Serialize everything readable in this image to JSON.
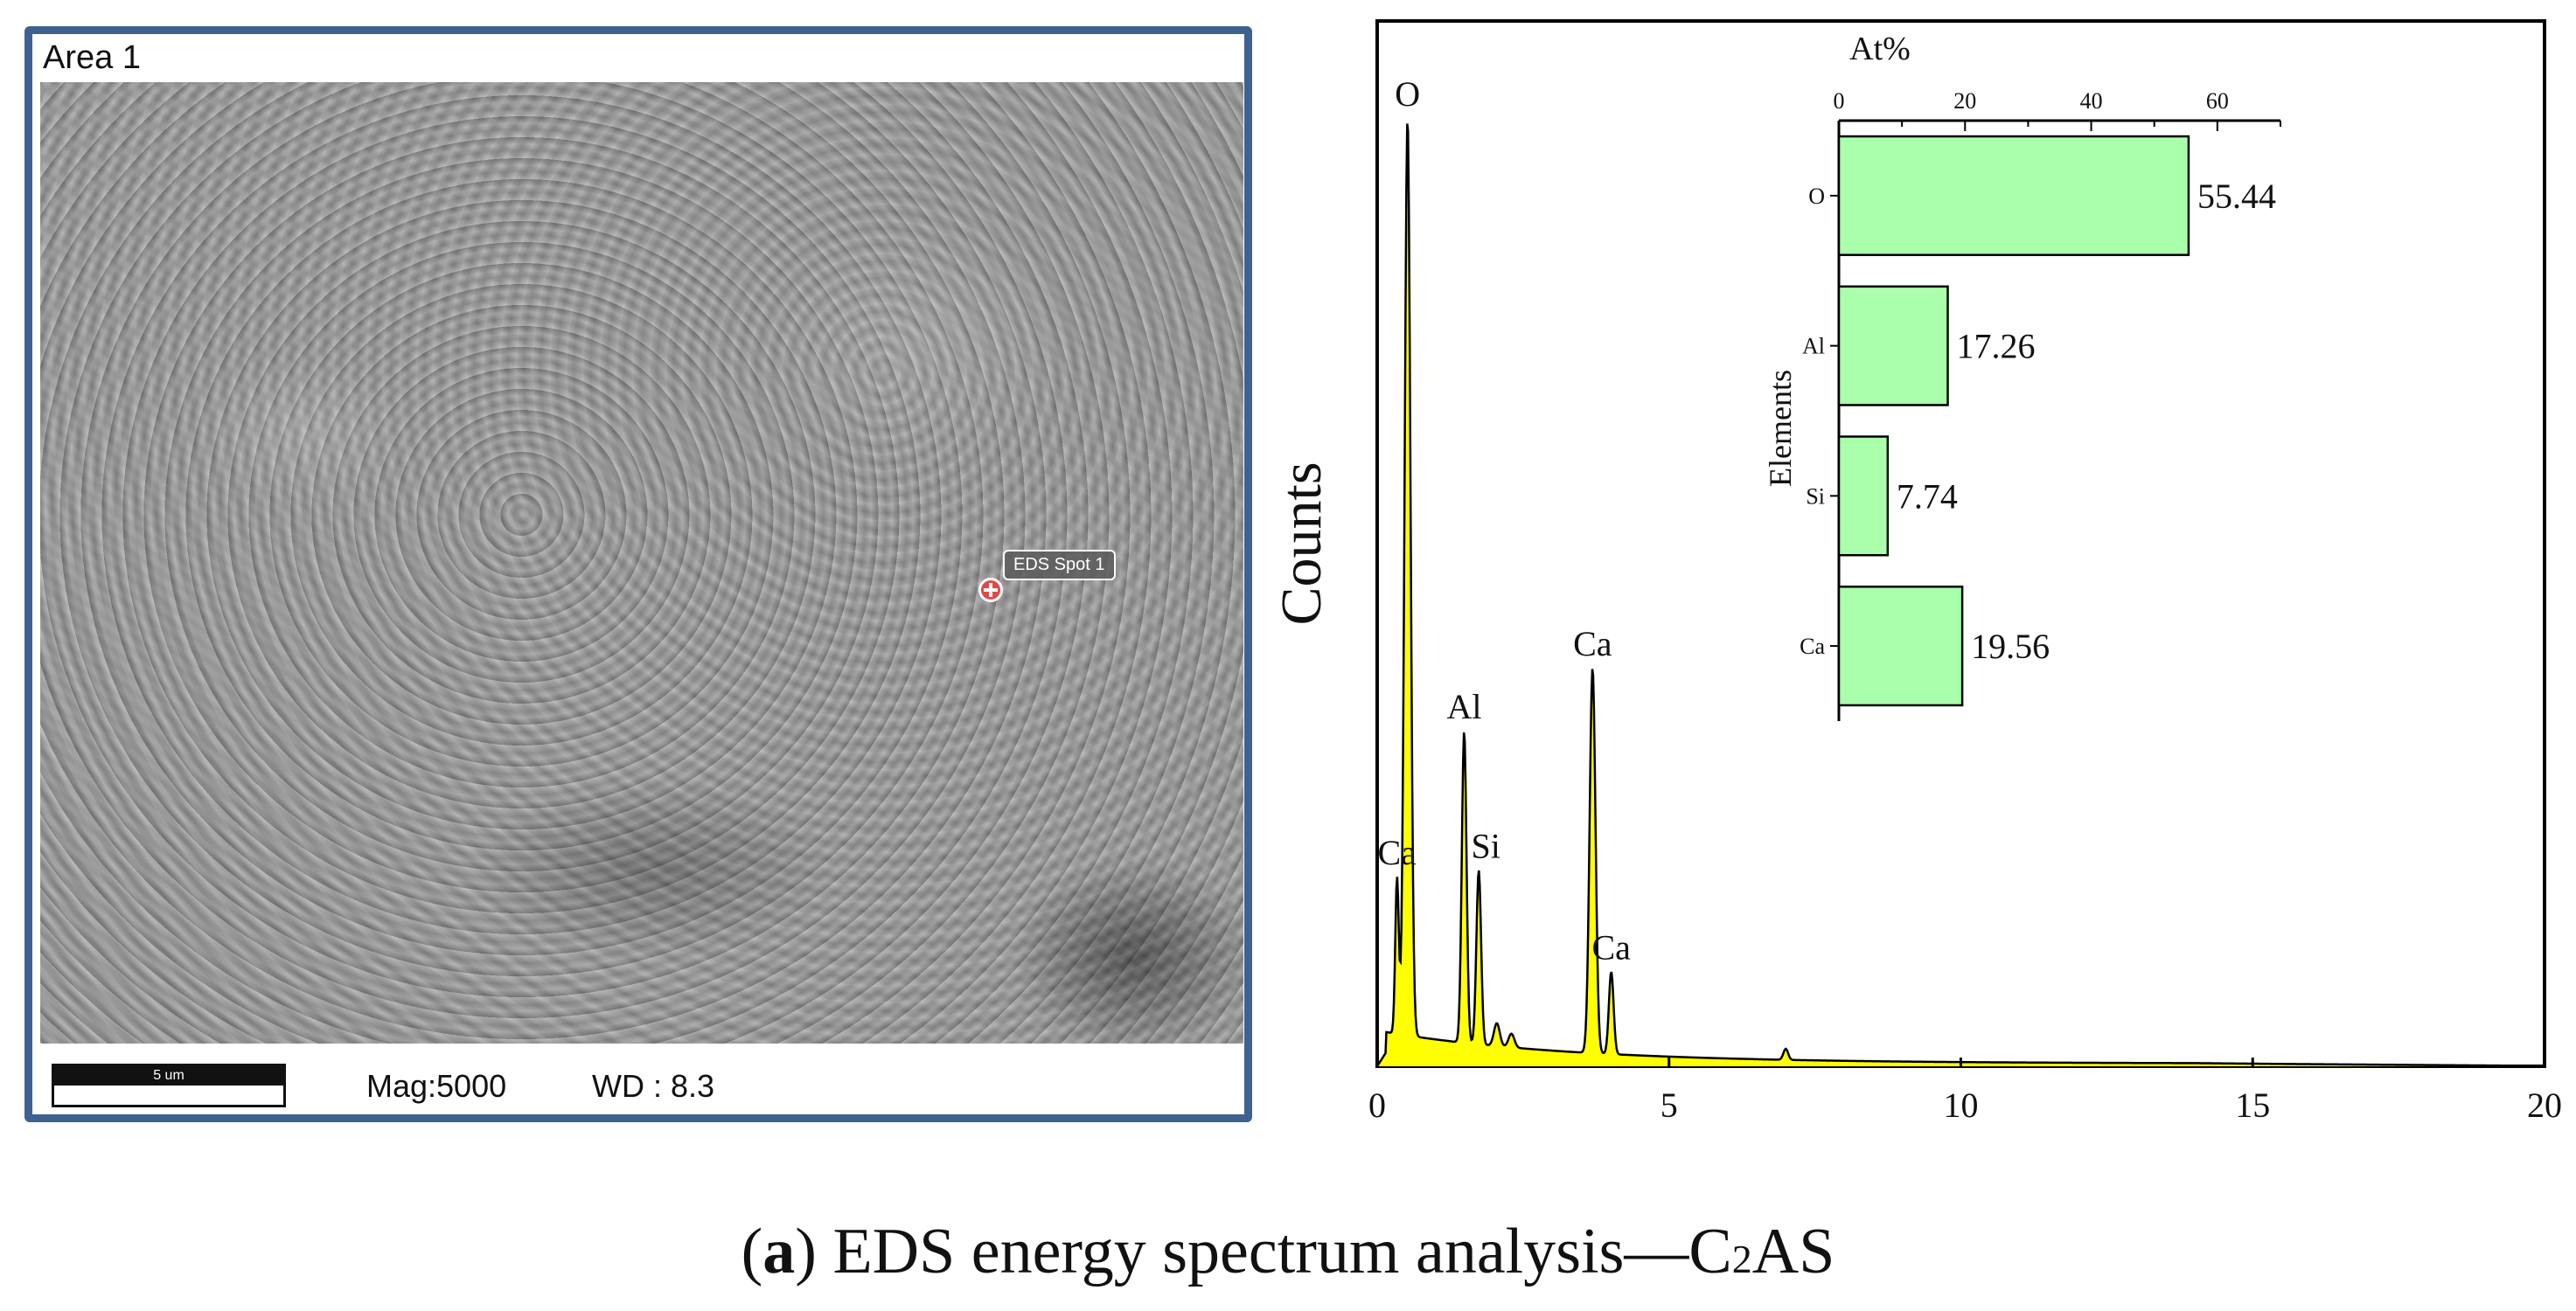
{
  "sem": {
    "area_label": "Area 1",
    "spot_label": "EDS Spot 1",
    "scale_label": "5 um",
    "mag": "Mag:5000",
    "wd": "WD : 8.3"
  },
  "caption": {
    "prefix": "(",
    "bold": "a",
    "text": ") EDS energy spectrum analysis—C",
    "sub": "2",
    "suffix": "AS"
  },
  "chart_data": [
    {
      "type": "line",
      "title": "",
      "xlabel": "",
      "ylabel": "Counts",
      "xlim": [
        0,
        20
      ],
      "xticks": [
        0,
        5,
        10,
        15,
        20
      ],
      "grid": false,
      "fill_color": "#ffff00",
      "line_color": "#000000",
      "baseline_counts": 8,
      "series": [
        {
          "peaks": [
            {
              "label": "O",
              "x": 0.52,
              "height": 100,
              "width": 0.05
            },
            {
              "label": "Ca",
              "x": 0.34,
              "height": 17,
              "width": 0.03
            },
            {
              "label": "Al",
              "x": 1.49,
              "height": 34,
              "width": 0.04
            },
            {
              "label": "Si",
              "x": 1.74,
              "height": 19,
              "width": 0.04
            },
            {
              "label": "Ca",
              "x": 3.69,
              "height": 42,
              "width": 0.05
            },
            {
              "label": "Ca",
              "x": 4.01,
              "height": 9,
              "width": 0.04
            },
            {
              "label": "",
              "x": 2.05,
              "height": 2.5,
              "width": 0.05
            },
            {
              "label": "",
              "x": 2.3,
              "height": 1.5,
              "width": 0.05
            },
            {
              "label": "",
              "x": 7.0,
              "height": 1.2,
              "width": 0.04
            }
          ]
        }
      ]
    },
    {
      "type": "bar",
      "orientation": "horizontal",
      "xlabel": "At%",
      "ylabel": "Elements",
      "xlim": [
        0,
        70
      ],
      "xticks": [
        0,
        20,
        40,
        60
      ],
      "categories": [
        "O",
        "Al",
        "Si",
        "Ca"
      ],
      "values": [
        55.44,
        17.26,
        7.74,
        19.56
      ],
      "value_labels": [
        "55.44",
        "17.26",
        "7.74",
        "19.56"
      ],
      "bar_color": "#aaffaa"
    }
  ]
}
